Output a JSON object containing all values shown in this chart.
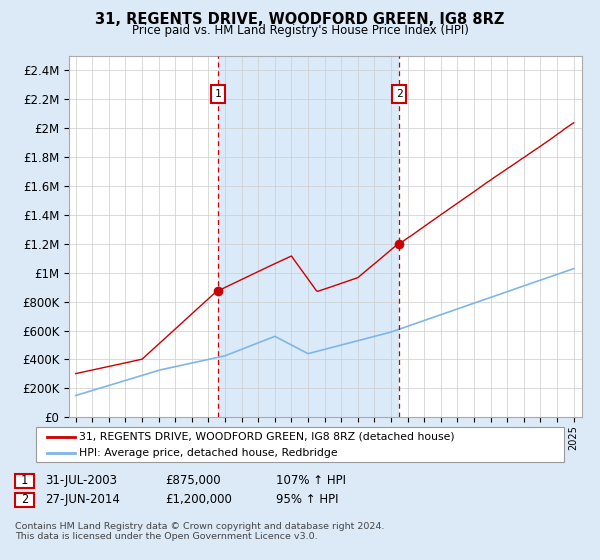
{
  "title": "31, REGENTS DRIVE, WOODFORD GREEN, IG8 8RZ",
  "subtitle": "Price paid vs. HM Land Registry's House Price Index (HPI)",
  "ylim": [
    0,
    2500000
  ],
  "yticks": [
    0,
    200000,
    400000,
    600000,
    800000,
    1000000,
    1200000,
    1400000,
    1600000,
    1800000,
    2000000,
    2200000,
    2400000
  ],
  "ytick_labels": [
    "£0",
    "£200K",
    "£400K",
    "£600K",
    "£800K",
    "£1M",
    "£1.2M",
    "£1.4M",
    "£1.6M",
    "£1.8M",
    "£2M",
    "£2.2M",
    "£2.4M"
  ],
  "x_start_year": 1995,
  "x_end_year": 2025,
  "marker1_year": 2003.58,
  "marker1_value": 875000,
  "marker1_label": "1",
  "marker1_date": "31-JUL-2003",
  "marker1_price": "£875,000",
  "marker1_hpi": "107% ↑ HPI",
  "marker2_year": 2014.49,
  "marker2_value": 1200000,
  "marker2_label": "2",
  "marker2_date": "27-JUN-2014",
  "marker2_price": "£1,200,000",
  "marker2_hpi": "95% ↑ HPI",
  "legend_line1": "31, REGENTS DRIVE, WOODFORD GREEN, IG8 8RZ (detached house)",
  "legend_line2": "HPI: Average price, detached house, Redbridge",
  "footnote1": "Contains HM Land Registry data © Crown copyright and database right 2024.",
  "footnote2": "This data is licensed under the Open Government Licence v3.0.",
  "hpi_line_color": "#7eb6e8",
  "price_line_color": "#cc0000",
  "background_color": "#dce9f7",
  "plot_bg_color": "#ffffff",
  "shade_color": "#daeaf8",
  "grid_color": "#cccccc",
  "marker_box_color": "#cc0000"
}
